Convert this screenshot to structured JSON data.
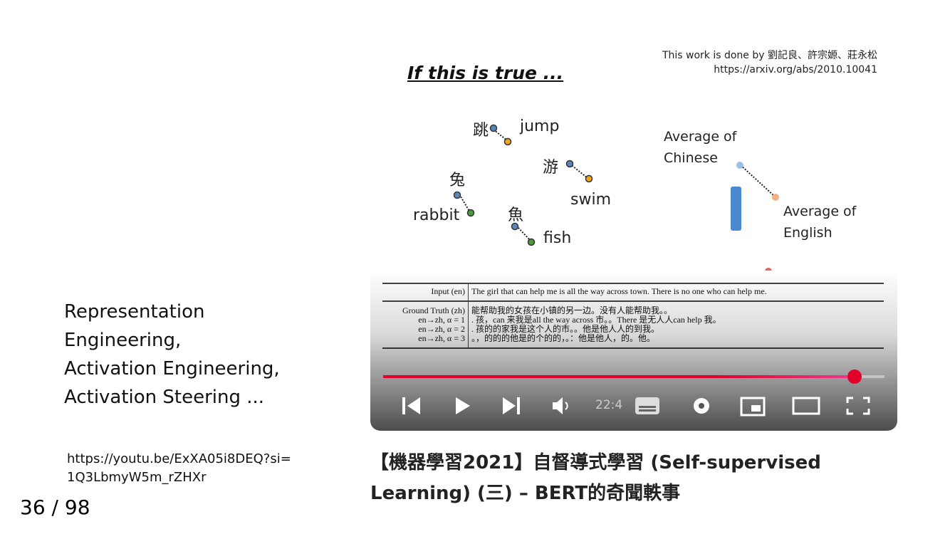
{
  "slide": {
    "text_lines": [
      "Representation",
      "Engineering,",
      "Activation Engineering,",
      "Activation Steering ..."
    ],
    "link_lines": [
      "https://youtu.be/ExXA05i8DEQ?si=",
      "1Q3LbmyW5m_rZHXr"
    ]
  },
  "page_indicator": {
    "current": 36,
    "separator": "/",
    "total": 98
  },
  "video": {
    "frame": {
      "title": "If this is true ...",
      "credit": "This work is done by 劉記良、許宗嫄、莊永松",
      "credit_url": "https://arxiv.org/abs/2010.10041",
      "words": [
        {
          "zh": "跳",
          "en": "jump"
        },
        {
          "zh": "游",
          "en": "swim"
        },
        {
          "zh": "兔",
          "en": "rabbit"
        },
        {
          "zh": "魚",
          "en": "fish"
        }
      ],
      "average_zh": [
        "Average of",
        "Chinese"
      ],
      "average_en": [
        "Average of",
        "English"
      ],
      "table": {
        "rows": [
          [
            "Input (en)",
            "The girl that can help me is all the way across town. There is no one who can help me."
          ],
          [
            "Ground Truth (zh)",
            "能帮助我的女孩在小镇的另一边。没有人能帮助我。。"
          ],
          [
            "en→zh, α = 1",
            ". 孩，can 来我是all the way across 市。。There 是无人人can help 我。"
          ],
          [
            "en→zh, α = 2",
            ". 孩的的家我是这个人的市。。他是他人人的到我。"
          ],
          [
            "en→zh, α = 3",
            "。，的的的他是的个的的，。：他是他人，的。他。"
          ]
        ]
      }
    },
    "time": "22:4",
    "title_lines": [
      "【機器學習2021】自督導式學習 (Self-supervised",
      "Learning) (三) – BERT的奇聞軼事"
    ]
  }
}
